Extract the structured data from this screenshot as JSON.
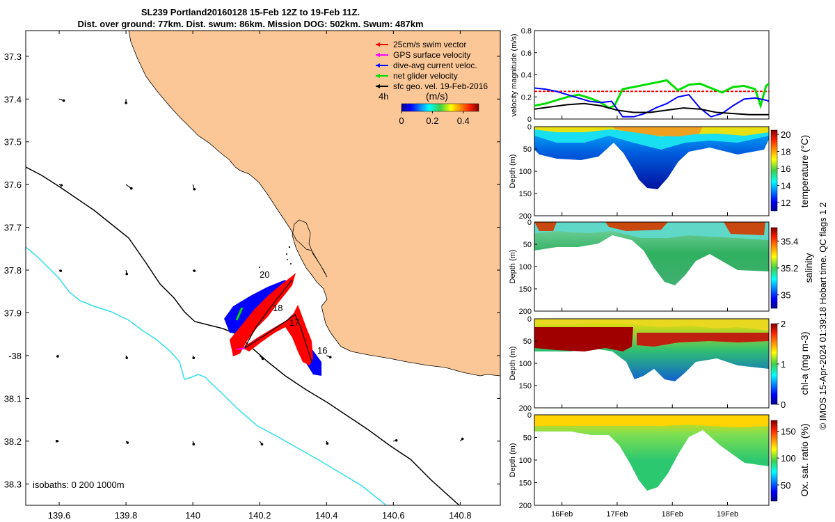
{
  "header": {
    "title_line1": "SL239 Portland20160128 15-Feb 12Z to 19-Feb 11Z.",
    "title_line2": "Dist. over ground: 77km. Dist. swum: 86km. Mission DOG: 502km. Swum: 487km"
  },
  "colors": {
    "land": "#fbc796",
    "ocean": "#ffffff",
    "isobath_200": "#000000",
    "isobath_1000": "#30e0e8",
    "swim_vector": "#ff0000",
    "gps_velocity": "#ff00ff",
    "current_velocity": "#0000ff",
    "net_velocity": "#00dd00",
    "geostrophic": "#000000"
  },
  "chart_data": [
    {
      "type": "map",
      "title": "SL239 Portland20160128 15-Feb 12Z to 19-Feb 11Z.",
      "xlim": [
        139.5,
        140.92
      ],
      "ylim": [
        -38.35,
        -37.24
      ],
      "xticks": [
        139.6,
        139.8,
        140,
        140.2,
        140.4,
        140.6,
        140.8
      ],
      "xtick_labels": [
        "139.6",
        "139.8",
        "140",
        "140.2",
        "140.4",
        "140.6",
        "140.8"
      ],
      "yticks": [
        -37.3,
        -37.4,
        -37.5,
        -37.6,
        -37.7,
        -37.8,
        -37.9,
        -38,
        -38.1,
        -38.2,
        -38.3
      ],
      "ytick_labels": [
        "37.3",
        "37.4",
        "37.5",
        "37.6",
        "37.7",
        "37.8",
        "37.9",
        "-38",
        "38.1",
        "38.2",
        "38.3"
      ],
      "legend": [
        {
          "label": "25cm/s swim vector",
          "color": "#ff0000"
        },
        {
          "label": "GPS surface velocity",
          "color": "#ff00ff"
        },
        {
          "label": "dive-avg current veloc.",
          "color": "#0000ff"
        },
        {
          "label": "net glider velocity",
          "color": "#00dd00"
        },
        {
          "label": "sfc geo. vel. 19-Feb-2016",
          "color": "#000000"
        }
      ],
      "colorbar": {
        "label": "(m/s)",
        "ticks": [
          "0",
          "0.2",
          "0.4"
        ],
        "range": [
          0,
          0.5
        ]
      },
      "time_label": "4h",
      "day_labels": [
        {
          "text": "20",
          "lon": 140.2,
          "lat": -37.83
        },
        {
          "text": "18",
          "lon": 140.26,
          "lat": -37.89
        },
        {
          "text": "17",
          "lon": 140.3,
          "lat": -37.93
        },
        {
          "text": "16",
          "lon": 140.38,
          "lat": -37.995
        }
      ],
      "isobaths_label": "isobaths: 0   200  1000m",
      "geo_vectors": [
        {
          "lon": 139.6,
          "lat": -37.4,
          "u": 0.06,
          "v": -0.02
        },
        {
          "lon": 139.8,
          "lat": -37.4,
          "u": 0.0,
          "v": -0.05
        },
        {
          "lon": 139.6,
          "lat": -37.6,
          "u": 0.03,
          "v": -0.01
        },
        {
          "lon": 139.8,
          "lat": -37.6,
          "u": 0.07,
          "v": -0.05
        },
        {
          "lon": 140.0,
          "lat": -37.6,
          "u": 0.02,
          "v": -0.06
        },
        {
          "lon": 139.6,
          "lat": -37.8,
          "u": 0.02,
          "v": -0.01
        },
        {
          "lon": 139.8,
          "lat": -37.8,
          "u": 0.01,
          "v": -0.05
        },
        {
          "lon": 140.0,
          "lat": -37.8,
          "u": 0.02,
          "v": -0.01
        },
        {
          "lon": 139.6,
          "lat": -38.0,
          "u": -0.02,
          "v": -0.01
        },
        {
          "lon": 139.8,
          "lat": -38.0,
          "u": 0.01,
          "v": -0.03
        },
        {
          "lon": 140.0,
          "lat": -38.0,
          "u": 0.01,
          "v": -0.03
        },
        {
          "lon": 140.2,
          "lat": -38.0,
          "u": 0.04,
          "v": -0.04
        },
        {
          "lon": 140.4,
          "lat": -38.0,
          "u": 0.05,
          "v": -0.02
        },
        {
          "lon": 139.6,
          "lat": -38.2,
          "u": -0.03,
          "v": 0.0
        },
        {
          "lon": 139.8,
          "lat": -38.2,
          "u": 0.02,
          "v": -0.02
        },
        {
          "lon": 140.0,
          "lat": -38.2,
          "u": 0.01,
          "v": -0.04
        },
        {
          "lon": 140.2,
          "lat": -38.2,
          "u": 0.03,
          "v": -0.04
        },
        {
          "lon": 140.4,
          "lat": -38.2,
          "u": 0.01,
          "v": -0.03
        },
        {
          "lon": 140.6,
          "lat": -38.2,
          "u": 0.04,
          "v": 0.01
        },
        {
          "lon": 140.8,
          "lat": -38.2,
          "u": 0.03,
          "v": 0.03
        }
      ]
    },
    {
      "type": "line",
      "ylabel": "velocity magnitude (m/s)",
      "ylim": [
        0,
        0.8
      ],
      "yticks": [
        0,
        0.2,
        0.4,
        0.6,
        0.8
      ],
      "ytick_labels": [
        "0",
        "0.2",
        "0.4",
        "0.6",
        "0.8"
      ],
      "xlim": [
        15.5,
        19.75
      ],
      "series": [
        {
          "name": "swim speed",
          "color": "#ff0000",
          "x": [
            15.5,
            19.75
          ],
          "values": [
            0.25,
            0.25
          ]
        },
        {
          "name": "net glider velocity",
          "color": "#00dd00",
          "x": [
            15.5,
            15.7,
            15.9,
            16.1,
            16.3,
            16.5,
            16.7,
            16.85,
            16.95,
            17.1,
            17.3,
            17.5,
            17.7,
            17.9,
            18.1,
            18.3,
            18.5,
            18.7,
            18.9,
            19.1,
            19.3,
            19.5,
            19.6,
            19.7,
            19.75
          ],
          "values": [
            0.12,
            0.14,
            0.17,
            0.2,
            0.22,
            0.19,
            0.15,
            0.1,
            0.12,
            0.27,
            0.29,
            0.31,
            0.33,
            0.35,
            0.26,
            0.31,
            0.32,
            0.28,
            0.24,
            0.29,
            0.3,
            0.27,
            0.12,
            0.3,
            0.32
          ]
        },
        {
          "name": "dive-avg current",
          "color": "#0000ff",
          "x": [
            15.5,
            15.7,
            15.9,
            16.1,
            16.3,
            16.5,
            16.7,
            16.9,
            17.1,
            17.3,
            17.5,
            17.7,
            17.9,
            18.1,
            18.3,
            18.5,
            18.7,
            18.9,
            19.1,
            19.3,
            19.5,
            19.7,
            19.75
          ],
          "values": [
            0.28,
            0.27,
            0.25,
            0.22,
            0.19,
            0.16,
            0.15,
            0.16,
            0.02,
            0.02,
            0.05,
            0.1,
            0.14,
            0.2,
            0.22,
            0.1,
            0.02,
            0.05,
            0.12,
            0.18,
            0.19,
            0.17,
            0.16
          ]
        },
        {
          "name": "geostrophic",
          "color": "#000000",
          "x": [
            15.5,
            15.8,
            16.1,
            16.4,
            16.7,
            17.0,
            17.3,
            17.6,
            17.9,
            18.2,
            18.5,
            18.8,
            19.1,
            19.4,
            19.75
          ],
          "values": [
            0.09,
            0.11,
            0.13,
            0.14,
            0.12,
            0.08,
            0.06,
            0.06,
            0.08,
            0.1,
            0.09,
            0.06,
            0.05,
            0.04,
            0.04
          ]
        }
      ]
    },
    {
      "type": "heatmap",
      "ylabel": "Depth (m)",
      "clabel": "temperature (°C)",
      "yticks": [
        "0",
        "50",
        "100",
        "150",
        "200"
      ],
      "cticks": [
        "12",
        "14",
        "16",
        "18",
        "20"
      ],
      "crange": [
        11,
        20.5
      ]
    },
    {
      "type": "heatmap",
      "ylabel": "Depth (m)",
      "clabel": "salinity",
      "yticks": [
        "0",
        "50",
        "100",
        "150",
        "200"
      ],
      "cticks": [
        "35",
        "35.2",
        "35.4"
      ],
      "crange": [
        34.9,
        35.5
      ]
    },
    {
      "type": "heatmap",
      "ylabel": "Depth (m)",
      "clabel": "chl-a (mg m-3)",
      "yticks": [
        "0",
        "50",
        "100",
        "150",
        "200"
      ],
      "cticks": [
        "0",
        "1",
        "2"
      ],
      "crange": [
        0,
        2
      ]
    },
    {
      "type": "heatmap",
      "ylabel": "Depth (m)",
      "clabel": "Ox. sat. ratio (%)",
      "yticks": [
        "0",
        "50",
        "100",
        "150",
        "200"
      ],
      "cticks": [
        "50",
        "100",
        "150"
      ],
      "crange": [
        20,
        170
      ]
    }
  ],
  "time_axis": {
    "labels": [
      "16Feb",
      "17Feb",
      "18Feb",
      "19Feb"
    ],
    "positions": [
      16,
      17,
      18,
      19
    ],
    "range": [
      15.5,
      19.75
    ]
  },
  "credit": "© IMOS 15-Apr-2024 01:39:18 Hobart time. QC flags 1  2"
}
